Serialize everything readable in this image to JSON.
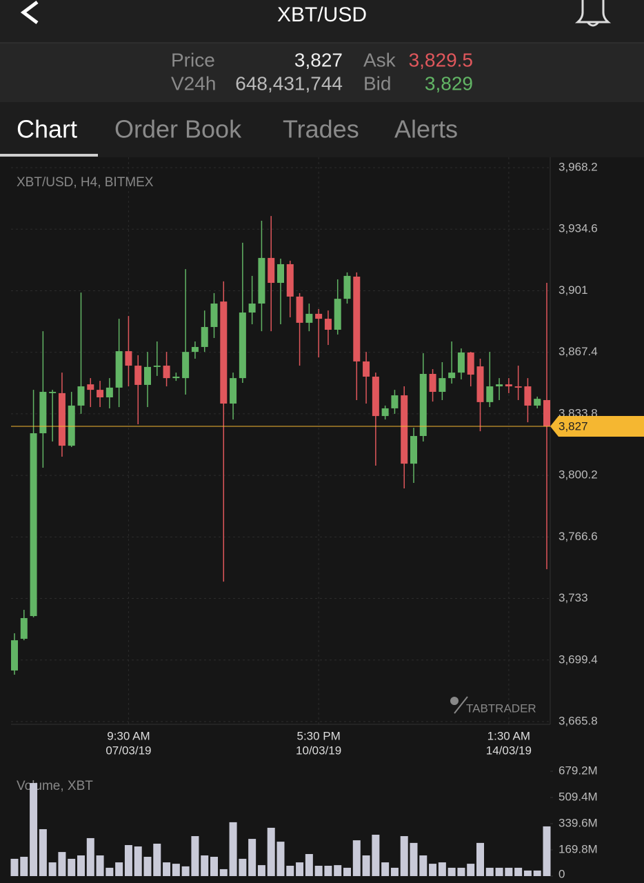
{
  "header": {
    "title": "XBT/USD"
  },
  "stats": {
    "price_label": "Price",
    "price": "3,827",
    "v24h_label": "V24h",
    "v24h": "648,431,744",
    "ask_label": "Ask",
    "ask": "3,829.5",
    "bid_label": "Bid",
    "bid": "3,829"
  },
  "tabs": [
    "Chart",
    "Order Book",
    "Trades",
    "Alerts"
  ],
  "watermark": "TABTRADER",
  "chart_data": [
    {
      "type": "candlestick",
      "title": "XBT/USD, H4, BITMEX",
      "up_color": "#62b565",
      "down_color": "#e0575c",
      "grid": true,
      "categories": [
        null,
        null,
        null,
        null,
        null,
        null,
        null,
        null,
        null,
        null,
        null,
        null,
        {
          "time": "9:30 AM",
          "date": "07/03/19"
        },
        null,
        null,
        null,
        null,
        null,
        null,
        null,
        null,
        null,
        null,
        null,
        null,
        null,
        null,
        null,
        null,
        null,
        null,
        null,
        {
          "time": "5:30 PM",
          "date": "10/03/19"
        },
        null,
        null,
        null,
        null,
        null,
        null,
        null,
        null,
        null,
        null,
        null,
        null,
        null,
        null,
        null,
        null,
        null,
        null,
        null,
        {
          "time": "1:30 AM",
          "date": "14/03/19"
        },
        null,
        null,
        null,
        null
      ],
      "open": [
        3693.7,
        3711.0,
        3723.4,
        3823.2,
        3845.1,
        3845.1,
        3816.4,
        3838.3,
        3849.9,
        3846.9,
        3842.8,
        3848.1,
        3868.0,
        3860.1,
        3849.6,
        3859.4,
        3860.1,
        3853.3,
        3853.3,
        3867.6,
        3870.3,
        3881.2,
        3895.1,
        3839.4,
        3853.3,
        3889.1,
        3894.0,
        3918.9,
        3905.3,
        3915.5,
        3897.8,
        3883.5,
        3888.4,
        3885.7,
        3879.7,
        3896.6,
        3908.7,
        3862.4,
        3854.1,
        3832.6,
        3836.8,
        3843.9,
        3806.6,
        3821.7,
        3855.6,
        3845.8,
        3853.3,
        3856.3,
        3867.3,
        3859.7,
        3840.2,
        3848.8,
        3849.9,
        3848.8,
        3848.8,
        3838.3,
        3841.3
      ],
      "high": [
        3714.0,
        3726.8,
        3846.9,
        3878.9,
        3846.9,
        3856.3,
        3845.8,
        3900.0,
        3853.3,
        3851.8,
        3853.3,
        3885.7,
        3887.2,
        3865.8,
        3867.6,
        3873.3,
        3867.6,
        3856.3,
        3912.8,
        3873.3,
        3890.2,
        3899.7,
        3906.1,
        3856.3,
        3927.2,
        3909.1,
        3939.2,
        3941.8,
        3918.5,
        3917.4,
        3899.7,
        3894.0,
        3891.0,
        3890.2,
        3907.2,
        3911.0,
        3911.0,
        3867.6,
        3856.3,
        3838.3,
        3846.9,
        3848.8,
        3826.2,
        3866.9,
        3858.2,
        3862.0,
        3873.3,
        3869.5,
        3867.6,
        3863.9,
        3867.6,
        3853.3,
        3853.3,
        3860.1,
        3853.3,
        3843.2,
        3905.3
      ],
      "low": [
        3691.4,
        3710.2,
        3722.7,
        3804.4,
        3818.7,
        3810.4,
        3815.7,
        3833.8,
        3837.5,
        3837.5,
        3836.8,
        3837.5,
        3848.8,
        3828.1,
        3837.5,
        3854.5,
        3848.8,
        3851.8,
        3844.3,
        3863.9,
        3867.6,
        3875.2,
        3742.2,
        3830.7,
        3850.7,
        3882.7,
        3878.9,
        3878.9,
        3882.7,
        3886.5,
        3860.1,
        3878.9,
        3864.6,
        3871.4,
        3877.1,
        3894.0,
        3841.3,
        3839.4,
        3805.5,
        3830.7,
        3833.8,
        3793.1,
        3796.1,
        3818.7,
        3840.5,
        3841.3,
        3850.3,
        3852.6,
        3848.8,
        3824.3,
        3837.5,
        3841.3,
        3845.1,
        3841.3,
        3829.2,
        3836.8,
        3749.0
      ],
      "close": [
        3710.2,
        3722.3,
        3823.2,
        3845.8,
        3845.8,
        3816.4,
        3838.3,
        3848.8,
        3846.9,
        3842.8,
        3848.1,
        3868.0,
        3860.1,
        3849.6,
        3859.4,
        3860.1,
        3853.3,
        3854.1,
        3867.6,
        3870.3,
        3881.2,
        3894.0,
        3839.4,
        3853.3,
        3889.1,
        3894.0,
        3918.9,
        3905.3,
        3915.5,
        3897.8,
        3883.5,
        3888.4,
        3885.7,
        3879.7,
        3896.6,
        3909.1,
        3862.4,
        3854.1,
        3832.6,
        3836.8,
        3843.9,
        3806.6,
        3821.7,
        3855.6,
        3845.8,
        3853.3,
        3856.3,
        3867.3,
        3855.2,
        3840.2,
        3848.8,
        3849.9,
        3848.8,
        3848.1,
        3838.3,
        3842.0,
        3827
      ],
      "ylim": [
        3665.8,
        3968.2
      ],
      "yticks": [
        {
          "value": 3665.8,
          "label": "3,665.8"
        },
        {
          "value": 3699.4,
          "label": "3,699.4"
        },
        {
          "value": 3733,
          "label": "3,733"
        },
        {
          "value": 3766.6,
          "label": "3,766.6"
        },
        {
          "value": 3800.2,
          "label": "3,800.2"
        },
        {
          "value": 3833.8,
          "label": "3,833.8"
        },
        {
          "value": 3867.4,
          "label": "3,867.4"
        },
        {
          "value": 3901,
          "label": "3,901"
        },
        {
          "value": 3934.6,
          "label": "3,934.6"
        },
        {
          "value": 3968.2,
          "label": "3,968.2"
        }
      ],
      "last_price": {
        "value": 3827,
        "label": "3,827",
        "color": "#f5b731"
      }
    },
    {
      "type": "bar",
      "title": "Volume, XBT",
      "color": "#c9cad8",
      "values": [
        112,
        125,
        603,
        304,
        89,
        156,
        112,
        134,
        246,
        134,
        54,
        89,
        201,
        192,
        125,
        210,
        89,
        80,
        63,
        259,
        134,
        125,
        45,
        349,
        112,
        241,
        71,
        313,
        223,
        67,
        89,
        143,
        67,
        67,
        71,
        54,
        232,
        134,
        268,
        89,
        54,
        259,
        215,
        134,
        80,
        89,
        54,
        54,
        80,
        215,
        54,
        54,
        54,
        54,
        36,
        36,
        322
      ],
      "ylim": [
        0,
        679.2
      ],
      "yticks": [
        0,
        {
          "value": 169.8,
          "label": "169.8M"
        },
        {
          "value": 339.6,
          "label": "339.6M"
        },
        {
          "value": 509.4,
          "label": "509.4M"
        },
        {
          "value": 679.2,
          "label": "679.2M"
        }
      ]
    }
  ]
}
